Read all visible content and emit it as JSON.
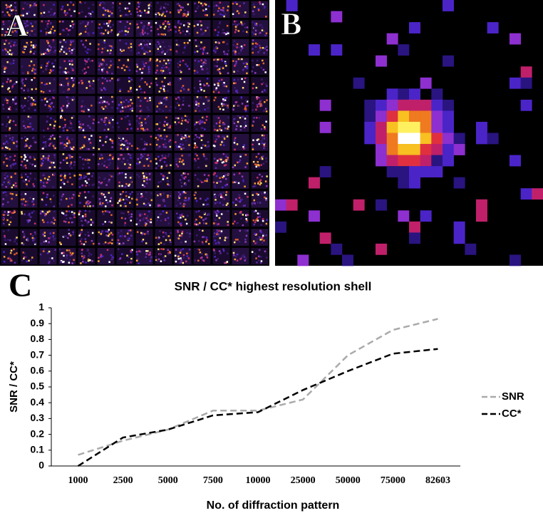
{
  "panel_labels": [
    "A",
    "B",
    "C"
  ],
  "chart_data": {
    "type": "line",
    "title": "SNR / CC* highest resolution shell",
    "x_label": "No. of diffraction pattern",
    "y_label": "SNR / CC*",
    "categories": [
      "1000",
      "2500",
      "5000",
      "7500",
      "10000",
      "25000",
      "50000",
      "75000",
      "82603"
    ],
    "series": [
      {
        "name": "SNR",
        "color": "#aaaaaa",
        "values": [
          0.07,
          0.16,
          0.23,
          0.35,
          0.35,
          0.42,
          0.7,
          0.86,
          0.93
        ]
      },
      {
        "name": "CC*",
        "color": "#000000",
        "values": [
          0.0,
          0.18,
          0.23,
          0.32,
          0.34,
          0.48,
          0.6,
          0.71,
          0.74
        ]
      }
    ],
    "ylim": [
      0,
      1
    ],
    "yticks": [
      0,
      0.1,
      0.2,
      0.3,
      0.4,
      0.5,
      0.6,
      0.7,
      0.8,
      0.9,
      1
    ],
    "grid": false,
    "legend": "right"
  }
}
